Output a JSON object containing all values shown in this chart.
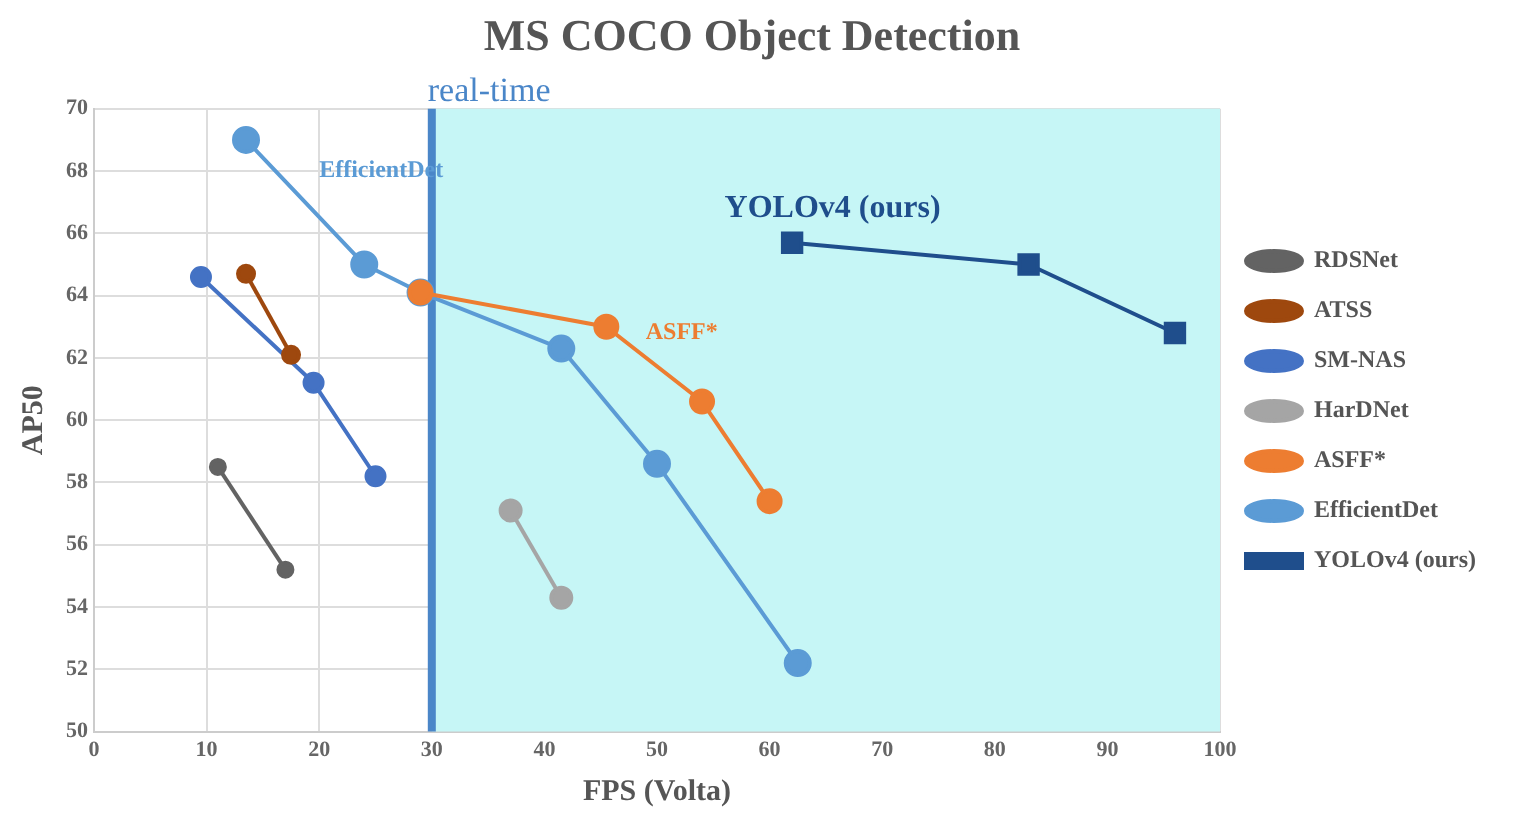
{
  "chart_data": {
    "type": "line",
    "title": "MS COCO Object Detection",
    "xlabel": "FPS (Volta)",
    "ylabel": "AP50",
    "series": [
      {
        "name": "YOLOv4 (ours)",
        "color": "#1f4e8c",
        "marker": "square",
        "x": [
          62,
          83,
          96
        ],
        "values": [
          65.7,
          65,
          62.8
        ]
      },
      {
        "name": "EfficientDet",
        "color": "#5b9bd5",
        "x": [
          13.5,
          24,
          29,
          41.5,
          50,
          62.5
        ],
        "values": [
          69,
          65,
          64.1,
          62.3,
          58.6,
          52.2
        ]
      },
      {
        "name": "ASFF*",
        "color": "#ed7d31",
        "x": [
          29,
          45.5,
          54,
          60
        ],
        "values": [
          64.1,
          63,
          60.6,
          57.4
        ]
      },
      {
        "name": "HarDNet",
        "color": "#a5a5a5",
        "x": [
          37,
          41.5
        ],
        "values": [
          57.1,
          54.3
        ]
      },
      {
        "name": "SM-NAS",
        "color": "#4472c4",
        "x": [
          9.5,
          19.5,
          25
        ],
        "values": [
          64.6,
          61.2,
          58.2
        ]
      },
      {
        "name": "ATSS",
        "color": "#9e480e",
        "x": [
          13.5,
          17.5
        ],
        "values": [
          64.7,
          62.1
        ]
      },
      {
        "name": "RDSNet",
        "color": "#636363",
        "x": [
          11,
          17
        ],
        "values": [
          58.5,
          55.2
        ]
      }
    ],
    "xlim": [
      0,
      100
    ],
    "xticks": [
      0,
      10,
      20,
      30,
      40,
      50,
      60,
      70,
      80,
      90,
      100
    ],
    "ylim": [
      50,
      70
    ],
    "yticks": [
      50,
      52,
      54,
      56,
      58,
      60,
      62,
      64,
      66,
      68,
      70
    ],
    "bands": [
      {
        "axis": "x",
        "from": 30,
        "to": 100,
        "color": "#c6f6f6"
      }
    ],
    "ref_lines": [
      {
        "axis": "x",
        "value": 30,
        "label": "real-time",
        "color": "#4a86c8"
      }
    ],
    "annotations": [
      "EfficientDet",
      "ASFF*",
      "YOLOv4 (ours)"
    ],
    "grid": true,
    "legend": "right",
    "marker": "circle",
    "line_style": "solid"
  }
}
